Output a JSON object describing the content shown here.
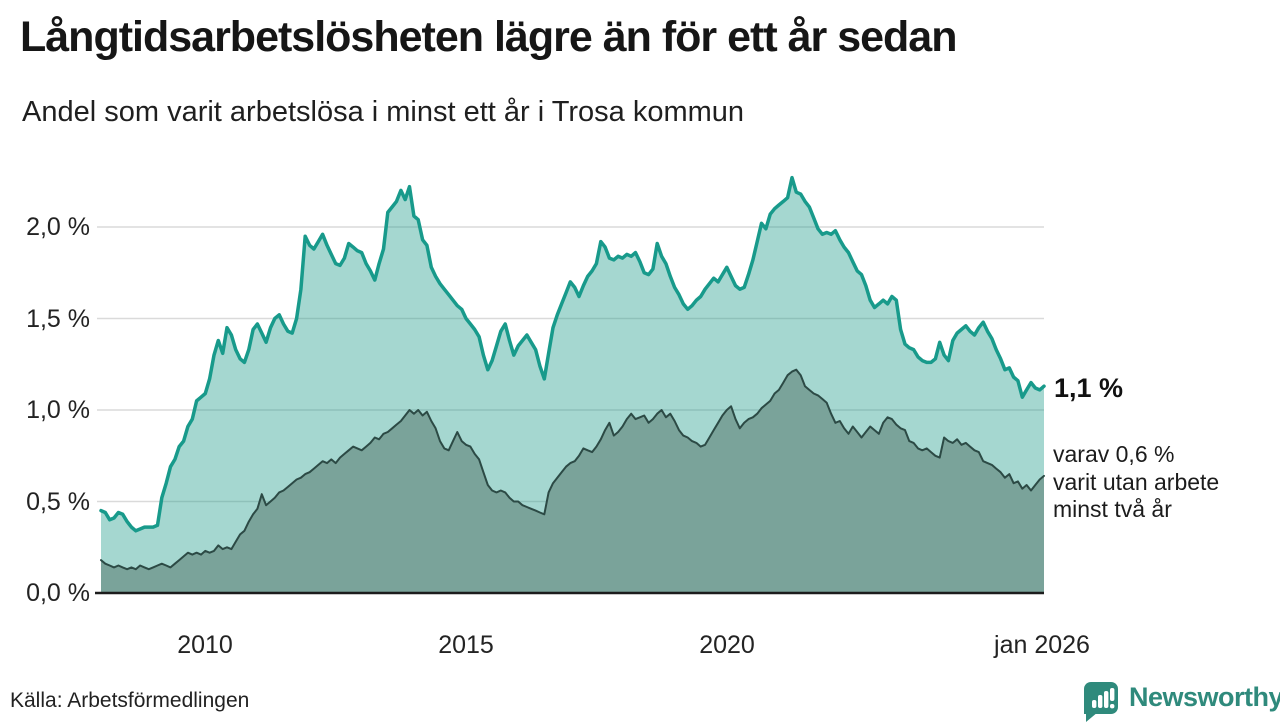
{
  "header": {
    "title": "Långtidsarbetslösheten lägre än för ett år sedan",
    "subtitle": "Andel som varit arbetslösa i minst ett år i Trosa kommun"
  },
  "footer": {
    "source": "Källa: Arbetsförmedlingen",
    "brand": "Newsworthy",
    "logo_icon": "newsworthy-speech-bubble-bar-chart-icon"
  },
  "colors": {
    "accent_teal": "#189a8b",
    "light_fill": "#a7d7d0",
    "light_fill_base": "#29a08f",
    "dark_fill": "#7aa39a",
    "dark_stroke": "#2c4a45",
    "grid": "#dadada",
    "axis": "#1c1c1c",
    "brand_teal": "#2f8a7c",
    "text": "#1a1a1a"
  },
  "chart_data": {
    "type": "area",
    "title": "Långtidsarbetslösheten lägre än för ett år sedan",
    "subtitle": "Andel som varit arbetslösa i minst ett år i Trosa kommun",
    "source": "Källa: Arbetsförmedlingen",
    "unit": "%",
    "grid": true,
    "legend_position": "none",
    "xlim": [
      2008.0,
      2026.083
    ],
    "ylim": [
      0,
      2.3
    ],
    "x_ticks": [
      {
        "t": 2010.0,
        "label": "2010"
      },
      {
        "t": 2015.0,
        "label": "2015"
      },
      {
        "t": 2020.0,
        "label": "2020"
      },
      {
        "t": 2026.04,
        "label": "jan 2026"
      }
    ],
    "y_ticks": [
      {
        "v": 0.0,
        "label": "0,0 %"
      },
      {
        "v": 0.5,
        "label": "0,5 %"
      },
      {
        "v": 1.0,
        "label": "1,0 %"
      },
      {
        "v": 1.5,
        "label": "1,5 %"
      },
      {
        "v": 2.0,
        "label": "2,0 %"
      }
    ],
    "end_labels": {
      "primary": "1,1 %",
      "secondary": [
        "varav 0,6 %",
        "varit utan arbete",
        "minst två år"
      ]
    },
    "series": [
      {
        "name": "Arbetslösa minst ett år",
        "stroke": "#189a8b",
        "stroke_width": 3.5,
        "fill": "#29a08f",
        "fill_opacity": 0.42,
        "start": 2008.0,
        "step_months": 1,
        "values": [
          0.45,
          0.44,
          0.4,
          0.41,
          0.44,
          0.43,
          0.39,
          0.36,
          0.34,
          0.35,
          0.36,
          0.36,
          0.36,
          0.37,
          0.52,
          0.6,
          0.69,
          0.73,
          0.8,
          0.83,
          0.91,
          0.95,
          1.05,
          1.07,
          1.09,
          1.17,
          1.3,
          1.38,
          1.31,
          1.45,
          1.41,
          1.33,
          1.28,
          1.26,
          1.33,
          1.44,
          1.47,
          1.42,
          1.37,
          1.45,
          1.5,
          1.52,
          1.47,
          1.43,
          1.42,
          1.5,
          1.66,
          1.95,
          1.9,
          1.88,
          1.92,
          1.96,
          1.9,
          1.85,
          1.8,
          1.79,
          1.83,
          1.91,
          1.89,
          1.87,
          1.86,
          1.8,
          1.76,
          1.71,
          1.8,
          1.88,
          2.08,
          2.11,
          2.14,
          2.2,
          2.15,
          2.22,
          2.06,
          2.04,
          1.93,
          1.9,
          1.78,
          1.73,
          1.69,
          1.66,
          1.63,
          1.6,
          1.57,
          1.55,
          1.5,
          1.47,
          1.44,
          1.4,
          1.3,
          1.22,
          1.27,
          1.35,
          1.43,
          1.47,
          1.38,
          1.3,
          1.35,
          1.38,
          1.41,
          1.37,
          1.33,
          1.24,
          1.17,
          1.31,
          1.45,
          1.52,
          1.58,
          1.64,
          1.7,
          1.67,
          1.62,
          1.68,
          1.73,
          1.76,
          1.8,
          1.92,
          1.89,
          1.83,
          1.82,
          1.84,
          1.83,
          1.85,
          1.84,
          1.86,
          1.81,
          1.75,
          1.74,
          1.77,
          1.91,
          1.84,
          1.8,
          1.73,
          1.67,
          1.63,
          1.58,
          1.55,
          1.57,
          1.6,
          1.62,
          1.66,
          1.69,
          1.72,
          1.7,
          1.74,
          1.78,
          1.73,
          1.68,
          1.66,
          1.67,
          1.74,
          1.82,
          1.92,
          2.02,
          1.99,
          2.07,
          2.1,
          2.12,
          2.14,
          2.16,
          2.27,
          2.19,
          2.18,
          2.14,
          2.11,
          2.05,
          1.99,
          1.96,
          1.97,
          1.96,
          1.98,
          1.93,
          1.89,
          1.86,
          1.81,
          1.76,
          1.74,
          1.68,
          1.6,
          1.56,
          1.58,
          1.6,
          1.58,
          1.62,
          1.6,
          1.44,
          1.36,
          1.34,
          1.33,
          1.29,
          1.27,
          1.26,
          1.26,
          1.28,
          1.37,
          1.3,
          1.27,
          1.38,
          1.42,
          1.44,
          1.46,
          1.43,
          1.41,
          1.45,
          1.48,
          1.43,
          1.39,
          1.33,
          1.28,
          1.22,
          1.23,
          1.18,
          1.16,
          1.07,
          1.11,
          1.15,
          1.12,
          1.11,
          1.13
        ]
      },
      {
        "name": "Arbetslösa minst två år",
        "stroke": "#2c4a45",
        "stroke_width": 2,
        "fill": "#7aa39a",
        "fill_opacity": 1,
        "start": 2008.0,
        "step_months": 1,
        "values": [
          0.18,
          0.16,
          0.15,
          0.14,
          0.15,
          0.14,
          0.13,
          0.14,
          0.13,
          0.15,
          0.14,
          0.13,
          0.14,
          0.15,
          0.16,
          0.15,
          0.14,
          0.16,
          0.18,
          0.2,
          0.22,
          0.21,
          0.22,
          0.21,
          0.23,
          0.22,
          0.23,
          0.26,
          0.24,
          0.25,
          0.24,
          0.28,
          0.32,
          0.34,
          0.39,
          0.43,
          0.46,
          0.54,
          0.48,
          0.5,
          0.52,
          0.55,
          0.56,
          0.58,
          0.6,
          0.62,
          0.63,
          0.65,
          0.66,
          0.68,
          0.7,
          0.72,
          0.71,
          0.73,
          0.71,
          0.74,
          0.76,
          0.78,
          0.8,
          0.79,
          0.78,
          0.8,
          0.82,
          0.85,
          0.84,
          0.87,
          0.88,
          0.9,
          0.92,
          0.94,
          0.97,
          1.0,
          0.98,
          1.0,
          0.97,
          0.99,
          0.94,
          0.9,
          0.83,
          0.79,
          0.78,
          0.83,
          0.88,
          0.83,
          0.81,
          0.8,
          0.76,
          0.73,
          0.66,
          0.59,
          0.56,
          0.55,
          0.56,
          0.55,
          0.52,
          0.5,
          0.5,
          0.48,
          0.47,
          0.46,
          0.45,
          0.44,
          0.43,
          0.55,
          0.6,
          0.63,
          0.66,
          0.69,
          0.71,
          0.72,
          0.75,
          0.79,
          0.78,
          0.77,
          0.8,
          0.84,
          0.89,
          0.93,
          0.86,
          0.88,
          0.91,
          0.95,
          0.98,
          0.95,
          0.96,
          0.97,
          0.93,
          0.95,
          0.98,
          1.0,
          0.96,
          0.98,
          0.94,
          0.89,
          0.86,
          0.85,
          0.83,
          0.82,
          0.8,
          0.81,
          0.85,
          0.89,
          0.93,
          0.97,
          1.0,
          1.02,
          0.95,
          0.9,
          0.93,
          0.95,
          0.96,
          0.98,
          1.01,
          1.03,
          1.05,
          1.09,
          1.11,
          1.15,
          1.19,
          1.21,
          1.22,
          1.19,
          1.13,
          1.11,
          1.09,
          1.08,
          1.06,
          1.04,
          0.98,
          0.93,
          0.94,
          0.9,
          0.87,
          0.91,
          0.88,
          0.85,
          0.88,
          0.91,
          0.89,
          0.87,
          0.93,
          0.96,
          0.95,
          0.92,
          0.9,
          0.89,
          0.83,
          0.82,
          0.79,
          0.78,
          0.79,
          0.77,
          0.75,
          0.74,
          0.85,
          0.83,
          0.82,
          0.84,
          0.81,
          0.82,
          0.8,
          0.78,
          0.77,
          0.72,
          0.71,
          0.7,
          0.68,
          0.66,
          0.63,
          0.65,
          0.6,
          0.61,
          0.57,
          0.59,
          0.56,
          0.59,
          0.62,
          0.64
        ]
      }
    ]
  }
}
